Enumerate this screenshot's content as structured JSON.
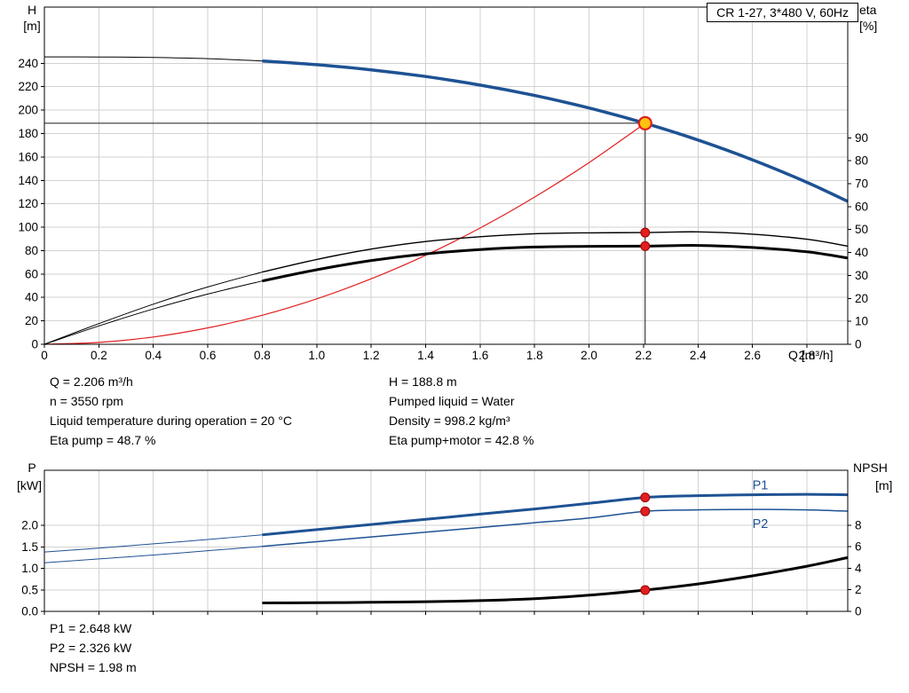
{
  "title_box": "CR 1-27, 3*480 V, 60Hz",
  "colors": {
    "blue": "#1e5293",
    "red": "#e02020",
    "black": "#000000",
    "grid": "#d2d2d2",
    "duty_fill": "#ffc20e",
    "guide": "#1a1a1a"
  },
  "info_panel": {
    "left": [
      "Q = 2.206 m³/h",
      "n = 3550 rpm",
      "Liquid temperature during operation = 20 °C",
      "Eta pump = 48.7 %"
    ],
    "right": [
      "H = 188.8 m",
      "Pumped liquid = Water",
      "Density = 998.2 kg/m³",
      "Eta pump+motor = 42.8 %"
    ]
  },
  "results_panel": [
    "P1 = 2.648 kW",
    "P2 = 2.326 kW",
    "NPSH = 1.98 m"
  ],
  "chart_data": [
    {
      "id": "qh",
      "type": "line",
      "title": "CR 1-27, 3*480 V, 60Hz",
      "x_axis": {
        "unit": "Q [m³/h]",
        "range": [
          0,
          2.95
        ],
        "tick_values": [
          0,
          0.2,
          0.4,
          0.6,
          0.8,
          1.0,
          1.2,
          1.4,
          1.6,
          1.8,
          2.0,
          2.2,
          2.4,
          2.6,
          2.8
        ],
        "tick_labels": [
          "0",
          "0.2",
          "0.4",
          "0.6",
          "0.8",
          "1.0",
          "1.2",
          "1.4",
          "1.6",
          "1.8",
          "2.0",
          "2.2",
          "2.4",
          "2.6",
          "2.8"
        ],
        "show_labels": true
      },
      "left_axis": {
        "name": "H",
        "unit": "[m]",
        "range": [
          0,
          288
        ],
        "tick_values": [
          0,
          20,
          40,
          60,
          80,
          100,
          120,
          140,
          160,
          180,
          200,
          220,
          240
        ],
        "tick_labels": [
          "0",
          "20",
          "40",
          "60",
          "80",
          "100",
          "120",
          "140",
          "160",
          "180",
          "200",
          "220",
          "240"
        ]
      },
      "right_axis": {
        "name": "eta",
        "unit": "[%]",
        "range": [
          0,
          147
        ],
        "tick_values": [
          0,
          10,
          20,
          30,
          40,
          50,
          60,
          70,
          80,
          90
        ],
        "tick_labels": [
          "0",
          "10",
          "20",
          "30",
          "40",
          "50",
          "60",
          "70",
          "80",
          "90"
        ]
      },
      "series": [
        {
          "name": "head-curve-low-flow",
          "axis": "left",
          "color": "black",
          "width": 1,
          "points": [
            [
              0,
              245.5
            ],
            [
              0.2,
              245.4
            ],
            [
              0.4,
              245.0
            ],
            [
              0.6,
              244.0
            ],
            [
              0.8,
              242.0
            ]
          ]
        },
        {
          "name": "head-curve",
          "axis": "left",
          "color": "blue",
          "width": 3.5,
          "points": [
            [
              0.8,
              242.0
            ],
            [
              1.0,
              238.8
            ],
            [
              1.2,
              234.4
            ],
            [
              1.4,
              228.7
            ],
            [
              1.6,
              221.4
            ],
            [
              1.8,
              212.5
            ],
            [
              2.0,
              201.8
            ],
            [
              2.206,
              188.8
            ],
            [
              2.4,
              174.5
            ],
            [
              2.6,
              157.6
            ],
            [
              2.8,
              138.3
            ],
            [
              2.95,
              122.0
            ]
          ]
        },
        {
          "name": "system-curve",
          "axis": "left",
          "color": "red",
          "width": 1.2,
          "points": [
            [
              0,
              0
            ],
            [
              0.2,
              1.6
            ],
            [
              0.4,
              6.2
            ],
            [
              0.6,
              14.0
            ],
            [
              0.8,
              24.8
            ],
            [
              1.0,
              38.8
            ],
            [
              1.2,
              55.9
            ],
            [
              1.4,
              76.0
            ],
            [
              1.6,
              99.3
            ],
            [
              1.8,
              125.7
            ],
            [
              2.0,
              155.2
            ],
            [
              2.206,
              188.8
            ]
          ]
        },
        {
          "name": "eta-pump-low-flow",
          "axis": "right",
          "color": "black",
          "width": 1,
          "points": [
            [
              0,
              0
            ],
            [
              0.2,
              9.0
            ],
            [
              0.4,
              17.5
            ],
            [
              0.6,
              25.0
            ],
            [
              0.8,
              31.5
            ]
          ]
        },
        {
          "name": "eta-pump-curve",
          "axis": "right",
          "color": "black",
          "width": 1.4,
          "points": [
            [
              0.8,
              31.5
            ],
            [
              1.0,
              37.0
            ],
            [
              1.2,
              41.5
            ],
            [
              1.4,
              44.8
            ],
            [
              1.6,
              46.9
            ],
            [
              1.8,
              48.2
            ],
            [
              2.0,
              48.6
            ],
            [
              2.206,
              48.7
            ],
            [
              2.4,
              49.0
            ],
            [
              2.6,
              48.0
            ],
            [
              2.8,
              45.8
            ],
            [
              2.95,
              42.8
            ]
          ]
        },
        {
          "name": "eta-pump-motor-low-flow",
          "axis": "right",
          "color": "black",
          "width": 1,
          "points": [
            [
              0,
              0
            ],
            [
              0.2,
              8.0
            ],
            [
              0.4,
              15.4
            ],
            [
              0.6,
              21.9
            ],
            [
              0.8,
              27.6
            ]
          ]
        },
        {
          "name": "eta-pump-motor-curve",
          "axis": "right",
          "color": "black",
          "width": 3,
          "points": [
            [
              0.8,
              27.6
            ],
            [
              1.0,
              32.5
            ],
            [
              1.2,
              36.5
            ],
            [
              1.4,
              39.4
            ],
            [
              1.6,
              41.3
            ],
            [
              1.8,
              42.4
            ],
            [
              2.0,
              42.7
            ],
            [
              2.206,
              42.8
            ],
            [
              2.4,
              43.1
            ],
            [
              2.6,
              42.2
            ],
            [
              2.8,
              40.3
            ],
            [
              2.95,
              37.6
            ]
          ]
        }
      ],
      "duty_point": {
        "q": 2.206,
        "h": 188.8
      },
      "markers": [
        {
          "name": "duty-point-marker",
          "q": 2.206,
          "value": 188.8,
          "axis": "left",
          "style": "duty"
        },
        {
          "name": "eta-pump-duty-dot",
          "q": 2.206,
          "value": 48.7,
          "axis": "right",
          "style": "dot"
        },
        {
          "name": "eta-pump-motor-duty-dot",
          "q": 2.206,
          "value": 42.8,
          "axis": "right",
          "style": "dot"
        }
      ]
    },
    {
      "id": "power",
      "type": "line",
      "x_axis": {
        "range": [
          0,
          2.95
        ],
        "tick_values": [
          0,
          0.2,
          0.4,
          0.6,
          0.8,
          1.0,
          1.2,
          1.4,
          1.6,
          1.8,
          2.0,
          2.2,
          2.4,
          2.6,
          2.8
        ],
        "tick_labels": [
          "0",
          "0.2",
          "0.4",
          "0.6",
          "0.8",
          "1.0",
          "1.2",
          "1.4",
          "1.6",
          "1.8",
          "2.0",
          "2.2",
          "2.4",
          "2.6",
          "2.8"
        ],
        "show_labels": false
      },
      "left_axis": {
        "name": "P",
        "unit": "[kW]",
        "range": [
          0,
          3.28
        ],
        "tick_values": [
          0,
          0.5,
          1.0,
          1.5,
          2.0
        ],
        "tick_labels": [
          "0.0",
          "0.5",
          "1.0",
          "1.5",
          "2.0"
        ]
      },
      "right_axis": {
        "name": "NPSH",
        "unit": "[m]",
        "range": [
          0,
          13.11
        ],
        "tick_values": [
          0,
          2,
          4,
          6,
          8
        ],
        "tick_labels": [
          "0",
          "2",
          "4",
          "6",
          "8"
        ]
      },
      "series": [
        {
          "name": "p1-low-flow",
          "axis": "left",
          "color": "blue",
          "width": 1,
          "points": [
            [
              0,
              1.38
            ],
            [
              0.2,
              1.47
            ],
            [
              0.4,
              1.57
            ],
            [
              0.6,
              1.67
            ],
            [
              0.8,
              1.78
            ]
          ]
        },
        {
          "name": "p1-curve",
          "axis": "left",
          "color": "blue",
          "width": 3,
          "points": [
            [
              0.8,
              1.78
            ],
            [
              1.0,
              1.9
            ],
            [
              1.2,
              2.02
            ],
            [
              1.4,
              2.14
            ],
            [
              1.6,
              2.26
            ],
            [
              1.8,
              2.38
            ],
            [
              2.0,
              2.51
            ],
            [
              2.206,
              2.648
            ],
            [
              2.4,
              2.69
            ],
            [
              2.6,
              2.71
            ],
            [
              2.8,
              2.72
            ],
            [
              2.95,
              2.71
            ]
          ]
        },
        {
          "name": "p2-low-flow",
          "axis": "left",
          "color": "blue",
          "width": 1,
          "points": [
            [
              0,
              1.13
            ],
            [
              0.2,
              1.22
            ],
            [
              0.4,
              1.31
            ],
            [
              0.6,
              1.41
            ],
            [
              0.8,
              1.51
            ]
          ]
        },
        {
          "name": "p2-curve",
          "axis": "left",
          "color": "blue",
          "width": 1.5,
          "points": [
            [
              0.8,
              1.51
            ],
            [
              1.0,
              1.62
            ],
            [
              1.2,
              1.73
            ],
            [
              1.4,
              1.84
            ],
            [
              1.6,
              1.95
            ],
            [
              1.8,
              2.06
            ],
            [
              2.0,
              2.17
            ],
            [
              2.206,
              2.326
            ],
            [
              2.4,
              2.36
            ],
            [
              2.6,
              2.37
            ],
            [
              2.8,
              2.36
            ],
            [
              2.95,
              2.33
            ]
          ]
        },
        {
          "name": "npsh-curve",
          "axis": "right",
          "color": "black",
          "width": 3,
          "points": [
            [
              0.8,
              0.78
            ],
            [
              1.0,
              0.8
            ],
            [
              1.2,
              0.84
            ],
            [
              1.4,
              0.9
            ],
            [
              1.6,
              1.0
            ],
            [
              1.8,
              1.18
            ],
            [
              2.0,
              1.5
            ],
            [
              2.206,
              1.98
            ],
            [
              2.4,
              2.55
            ],
            [
              2.6,
              3.3
            ],
            [
              2.8,
              4.2
            ],
            [
              2.95,
              5.0
            ]
          ]
        }
      ],
      "labels": [
        {
          "text": "P1",
          "q": 2.6,
          "value": 2.92,
          "axis": "left",
          "color": "blue"
        },
        {
          "text": "P2",
          "q": 2.6,
          "value": 2.02,
          "axis": "left",
          "color": "blue"
        }
      ],
      "markers": [
        {
          "name": "p1-duty-dot",
          "q": 2.206,
          "value": 2.648,
          "axis": "left",
          "style": "dot"
        },
        {
          "name": "p2-duty-dot",
          "q": 2.206,
          "value": 2.326,
          "axis": "left",
          "style": "dot"
        },
        {
          "name": "npsh-duty-dot",
          "q": 2.206,
          "value": 1.98,
          "axis": "right",
          "style": "dot"
        }
      ]
    }
  ]
}
